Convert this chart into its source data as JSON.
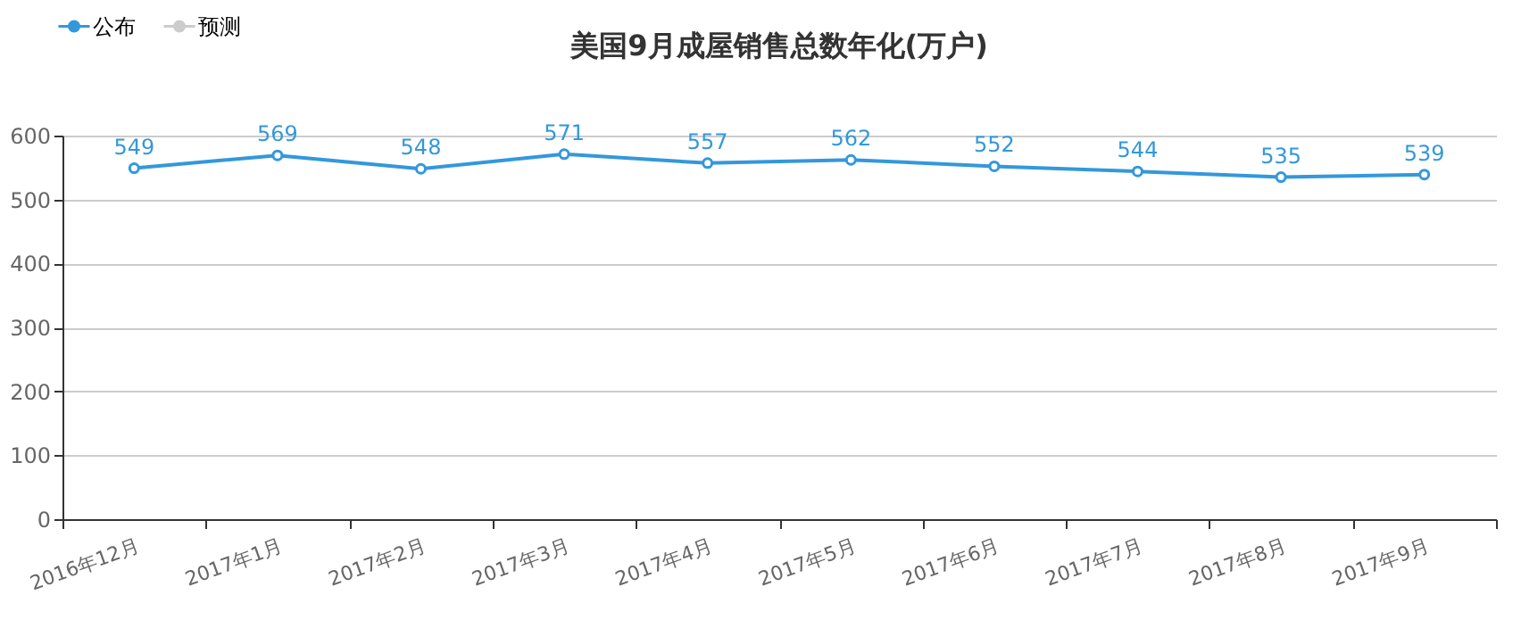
{
  "chart_data": {
    "type": "line",
    "title": "美国9月成屋销售总数年化(万户)",
    "categories": [
      "2016年12月",
      "2017年1月",
      "2017年2月",
      "2017年3月",
      "2017年4月",
      "2017年5月",
      "2017年6月",
      "2017年7月",
      "2017年8月",
      "2017年9月"
    ],
    "series": [
      {
        "name": "公布",
        "color": "#3398db",
        "values": [
          549,
          569,
          548,
          571,
          557,
          562,
          552,
          544,
          535,
          539
        ]
      },
      {
        "name": "预测",
        "color": "#cccccc",
        "values": [
          null,
          null,
          null,
          null,
          null,
          null,
          null,
          null,
          null,
          null
        ]
      }
    ],
    "ylim": [
      0,
      600
    ],
    "yticks": [
      0,
      100,
      200,
      300,
      400,
      500,
      600
    ],
    "grid": "y",
    "legend": "top left",
    "marker": "circle",
    "line_style": "solid",
    "data_labels": true
  }
}
